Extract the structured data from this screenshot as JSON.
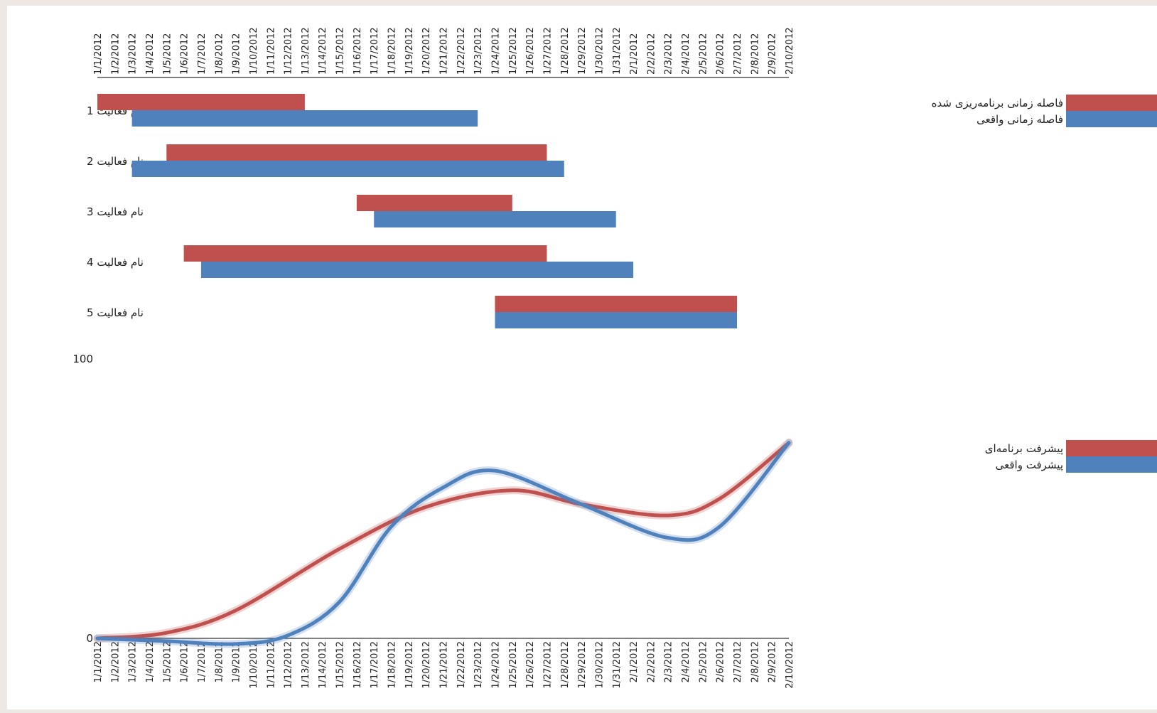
{
  "colors": {
    "planned": "#c0504d",
    "actual": "#4f81bd",
    "background": "#ffffff",
    "frame": "#ede8e3"
  },
  "chart_data": [
    {
      "type": "bar",
      "subtype": "gantt",
      "x_ticks": [
        "1/1/2012",
        "1/2/2012",
        "1/3/2012",
        "1/4/2012",
        "1/5/2012",
        "1/6/2012",
        "1/7/2012",
        "1/8/2012",
        "1/9/2012",
        "1/10/2012",
        "1/11/2012",
        "1/12/2012",
        "1/13/2012",
        "1/14/2012",
        "1/15/2012",
        "1/16/2012",
        "1/17/2012",
        "1/18/2012",
        "1/19/2012",
        "1/20/2012",
        "1/21/2012",
        "1/22/2012",
        "1/23/2012",
        "1/24/2012",
        "1/25/2012",
        "1/26/2012",
        "1/27/2012",
        "1/28/2012",
        "1/29/2012",
        "1/30/2012",
        "1/31/2012",
        "2/1/2012",
        "2/2/2012",
        "2/3/2012",
        "2/4/2012",
        "2/5/2012",
        "2/6/2012",
        "2/7/2012",
        "2/8/2012",
        "2/9/2012",
        "2/10/2012"
      ],
      "xlim": [
        "1/1/2012",
        "2/10/2012"
      ],
      "categories": [
        "نام فعالیت 1",
        "نام فعالیت 2",
        "نام فعالیت 3",
        "نام فعالیت 4",
        "نام فعالیت 5"
      ],
      "series": [
        {
          "name": "فاصله زمانی برنامه‌ریزی شده",
          "color": "#c0504d",
          "tasks": [
            {
              "start": "1/1/2012",
              "end": "1/13/2012"
            },
            {
              "start": "1/5/2012",
              "end": "1/27/2012"
            },
            {
              "start": "1/16/2012",
              "end": "1/25/2012"
            },
            {
              "start": "1/6/2012",
              "end": "1/27/2012"
            },
            {
              "start": "1/24/2012",
              "end": "2/7/2012"
            }
          ]
        },
        {
          "name": "فاصله زمانی واقعی",
          "color": "#4f81bd",
          "tasks": [
            {
              "start": "1/3/2012",
              "end": "1/23/2012"
            },
            {
              "start": "1/3/2012",
              "end": "1/28/2012"
            },
            {
              "start": "1/17/2012",
              "end": "1/31/2012"
            },
            {
              "start": "1/7/2012",
              "end": "2/1/2012"
            },
            {
              "start": "1/24/2012",
              "end": "2/7/2012"
            }
          ]
        }
      ],
      "legend_position": "right"
    },
    {
      "type": "line",
      "x_ticks": [
        "1/1/2012",
        "1/2/2012",
        "1/3/2012",
        "1/4/2012",
        "1/5/2012",
        "1/6/2012",
        "1/7/2012",
        "1/8/2012",
        "1/9/2012",
        "1/10/2012",
        "1/11/2012",
        "1/12/2012",
        "1/13/2012",
        "1/14/2012",
        "1/15/2012",
        "1/16/2012",
        "1/17/2012",
        "1/18/2012",
        "1/19/2012",
        "1/20/2012",
        "1/21/2012",
        "1/22/2012",
        "1/23/2012",
        "1/24/2012",
        "1/25/2012",
        "1/26/2012",
        "1/27/2012",
        "1/28/2012",
        "1/29/2012",
        "1/30/2012",
        "1/31/2012",
        "2/1/2012",
        "2/2/2012",
        "2/3/2012",
        "2/4/2012",
        "2/5/2012",
        "2/6/2012",
        "2/7/2012",
        "2/8/2012",
        "2/9/2012",
        "2/10/2012"
      ],
      "y_ticks": [
        "100",
        "0"
      ],
      "ylim": [
        0,
        100
      ],
      "smooth": true,
      "series": [
        {
          "name": "پیشرفت برنامه‌ای",
          "color": "#c0504d",
          "points": [
            {
              "x": "1/1/2012",
              "y": 0
            },
            {
              "x": "1/5/2012",
              "y": 2
            },
            {
              "x": "1/9/2012",
              "y": 10
            },
            {
              "x": "1/15/2012",
              "y": 32
            },
            {
              "x": "1/20/2012",
              "y": 47
            },
            {
              "x": "1/25/2012",
              "y": 53
            },
            {
              "x": "1/29/2012",
              "y": 48
            },
            {
              "x": "2/3/2012",
              "y": 44
            },
            {
              "x": "2/6/2012",
              "y": 50
            },
            {
              "x": "2/10/2012",
              "y": 70
            }
          ]
        },
        {
          "name": "پیشرفت واقعی",
          "color": "#4f81bd",
          "points": [
            {
              "x": "1/1/2012",
              "y": 0
            },
            {
              "x": "1/5/2012",
              "y": -1
            },
            {
              "x": "1/9/2012",
              "y": -2
            },
            {
              "x": "1/12/2012",
              "y": 1
            },
            {
              "x": "1/15/2012",
              "y": 13
            },
            {
              "x": "1/18/2012",
              "y": 40
            },
            {
              "x": "1/21/2012",
              "y": 54
            },
            {
              "x": "1/24/2012",
              "y": 60
            },
            {
              "x": "1/29/2012",
              "y": 48
            },
            {
              "x": "2/3/2012",
              "y": 36
            },
            {
              "x": "2/6/2012",
              "y": 40
            },
            {
              "x": "2/10/2012",
              "y": 70
            }
          ]
        }
      ],
      "legend_position": "right"
    }
  ]
}
